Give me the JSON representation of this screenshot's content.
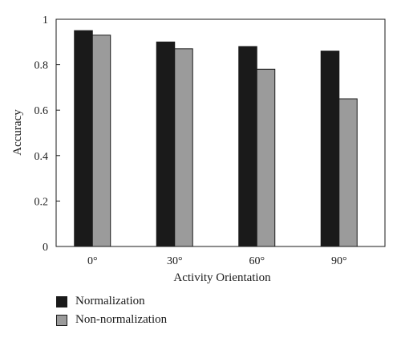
{
  "chart_data": {
    "type": "bar",
    "title": "",
    "xlabel": "Activity Orientation",
    "ylabel": "Accuracy",
    "categories": [
      "0°",
      "30°",
      "60°",
      "90°"
    ],
    "ylim": [
      0,
      1
    ],
    "yticks": [
      "0",
      "0.2",
      "0.4",
      "0.6",
      "0.8",
      "1"
    ],
    "series": [
      {
        "name": "Normalization",
        "values": [
          0.95,
          0.9,
          0.88,
          0.86
        ],
        "color": "#1a1a1a"
      },
      {
        "name": "Non-normalization",
        "values": [
          0.93,
          0.87,
          0.78,
          0.65
        ],
        "color": "#9b9b9b"
      }
    ],
    "grid": false,
    "legend_position": "bottom-left"
  }
}
